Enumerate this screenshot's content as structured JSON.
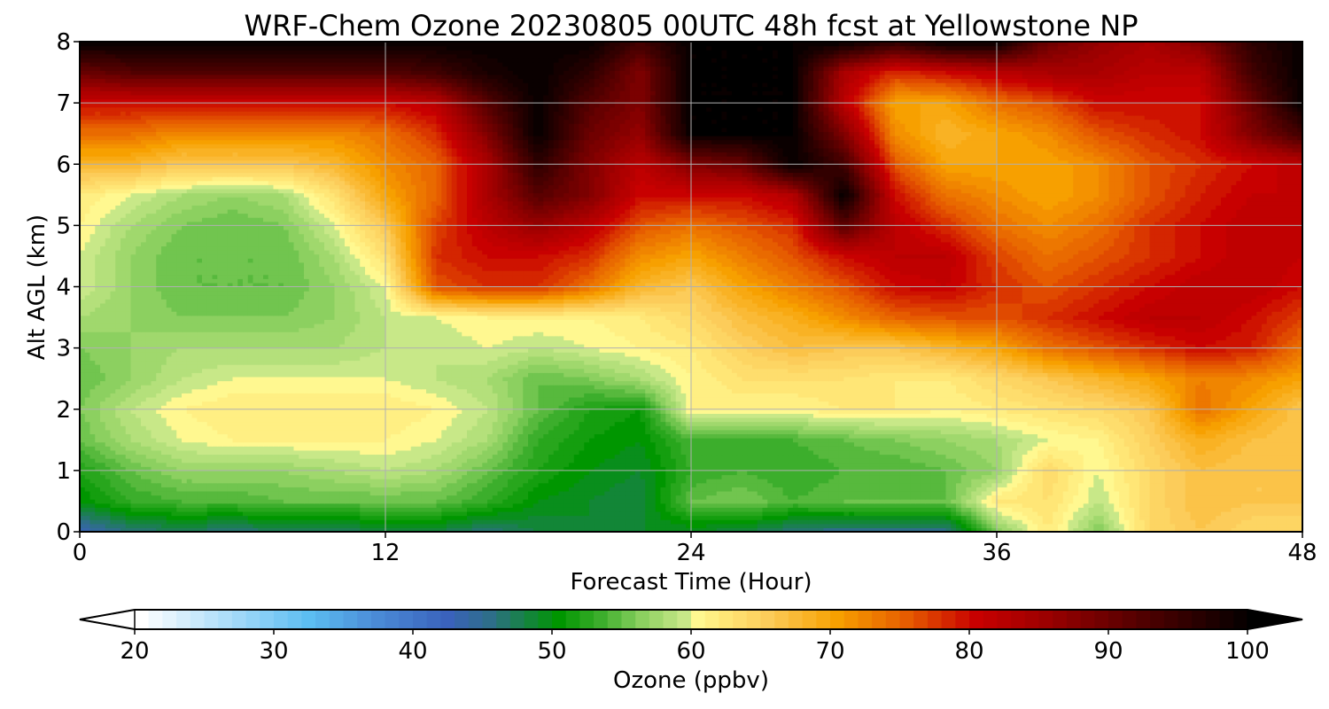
{
  "chart_data": {
    "type": "heatmap",
    "title": "WRF-Chem Ozone  20230805 00UTC 48h fcst at Yellowstone NP",
    "xlabel": "Forecast Time (Hour)",
    "ylabel": "Alt AGL (km)",
    "xlim": [
      0,
      48
    ],
    "ylim": [
      0,
      8
    ],
    "xticks": [
      0,
      12,
      24,
      36,
      48
    ],
    "yticks": [
      0,
      1,
      2,
      3,
      4,
      5,
      6,
      7,
      8
    ],
    "grid": true,
    "colorbar": {
      "label": "Ozone  (ppbv)",
      "min": 20,
      "max": 100,
      "step": 1,
      "ticks": [
        20,
        30,
        40,
        50,
        60,
        70,
        80,
        90,
        100
      ],
      "extend": "both",
      "colors": {
        "20": "#ffffff",
        "27": "#a0d8f8",
        "32": "#5cbef2",
        "37": "#4a8ad6",
        "42": "#3a62bc",
        "45": "#2e6e8a",
        "50": "#009600",
        "53": "#3cae2c",
        "56": "#8cd060",
        "59": "#c8e888",
        "60": "#fff890",
        "62": "#ffe676",
        "65": "#fccc5a",
        "70": "#f7a000",
        "75": "#e65c00",
        "80": "#c80000",
        "85": "#9c0000",
        "92": "#500000",
        "100": "#000000"
      }
    },
    "x": [
      0,
      2,
      4,
      6,
      8,
      10,
      12,
      14,
      16,
      18,
      20,
      22,
      24,
      26,
      28,
      30,
      32,
      34,
      36,
      38,
      40,
      42,
      44,
      46,
      48
    ],
    "y": [
      0,
      0.5,
      1,
      1.5,
      2,
      2.5,
      3,
      3.5,
      4,
      4.5,
      5,
      5.5,
      6,
      6.5,
      7,
      7.5,
      8
    ],
    "z": [
      [
        43,
        46,
        47,
        46,
        47,
        47,
        48,
        48,
        46,
        48,
        49,
        49,
        49,
        48,
        46,
        45,
        45,
        45,
        56,
        62,
        56,
        64,
        66,
        64,
        64
      ],
      [
        50,
        53,
        54,
        54,
        55,
        55,
        55,
        55,
        53,
        50,
        49,
        48,
        55,
        56,
        54,
        55,
        55,
        55,
        62,
        63,
        59,
        64,
        67,
        66,
        66
      ],
      [
        52,
        55,
        57,
        57,
        57,
        58,
        59,
        58,
        55,
        52,
        50,
        49,
        53,
        54,
        53,
        54,
        54,
        55,
        57,
        64,
        60,
        64,
        67,
        66,
        66
      ],
      [
        55,
        58,
        60,
        61,
        61,
        61,
        61,
        60,
        58,
        53,
        51,
        50,
        54,
        53,
        54,
        55,
        56,
        57,
        58,
        60,
        61,
        65,
        69,
        67,
        66
      ],
      [
        56,
        59,
        61,
        62,
        62,
        62,
        62,
        61,
        59,
        55,
        52,
        51,
        61,
        61,
        61,
        62,
        62,
        61,
        62,
        63,
        64,
        66,
        74,
        70,
        66
      ],
      [
        55,
        57,
        59,
        60,
        60,
        60,
        60,
        59,
        58,
        55,
        56,
        58,
        61,
        63,
        63,
        63,
        62,
        62,
        64,
        66,
        68,
        70,
        73,
        72,
        70
      ],
      [
        56,
        57,
        58,
        58,
        58,
        58,
        59,
        59,
        60,
        59,
        60,
        61,
        62,
        65,
        67,
        66,
        66,
        68,
        70,
        74,
        76,
        78,
        80,
        79,
        74
      ],
      [
        58,
        57,
        56,
        56,
        56,
        57,
        59,
        60,
        61,
        61,
        61,
        62,
        64,
        67,
        69,
        72,
        75,
        76,
        76,
        78,
        80,
        82,
        82,
        80,
        77
      ],
      [
        60,
        57,
        55,
        55,
        55,
        57,
        60,
        76,
        78,
        78,
        74,
        68,
        66,
        70,
        73,
        76,
        80,
        81,
        78,
        76,
        78,
        80,
        82,
        82,
        80
      ],
      [
        60,
        57,
        55,
        55,
        55,
        58,
        63,
        78,
        80,
        80,
        78,
        72,
        70,
        73,
        76,
        80,
        82,
        82,
        77,
        74,
        76,
        78,
        80,
        82,
        81
      ],
      [
        61,
        58,
        56,
        55,
        56,
        60,
        66,
        77,
        82,
        86,
        82,
        76,
        74,
        76,
        78,
        92,
        82,
        78,
        74,
        72,
        74,
        78,
        80,
        82,
        81
      ],
      [
        62,
        60,
        58,
        57,
        58,
        63,
        70,
        75,
        84,
        92,
        88,
        80,
        80,
        80,
        83,
        100,
        80,
        74,
        72,
        70,
        72,
        76,
        79,
        81,
        81
      ],
      [
        68,
        68,
        66,
        66,
        66,
        68,
        72,
        75,
        84,
        96,
        88,
        82,
        88,
        90,
        100,
        94,
        76,
        70,
        70,
        70,
        72,
        76,
        78,
        80,
        82
      ],
      [
        74,
        74,
        72,
        72,
        72,
        72,
        74,
        78,
        88,
        100,
        90,
        86,
        100,
        100,
        100,
        88,
        72,
        68,
        70,
        72,
        76,
        78,
        80,
        88,
        94
      ],
      [
        80,
        80,
        80,
        80,
        80,
        80,
        80,
        82,
        92,
        100,
        92,
        88,
        100,
        100,
        100,
        82,
        70,
        70,
        74,
        76,
        80,
        80,
        80,
        90,
        100
      ],
      [
        90,
        92,
        92,
        92,
        92,
        92,
        92,
        94,
        98,
        100,
        96,
        88,
        100,
        100,
        100,
        84,
        78,
        80,
        82,
        84,
        84,
        82,
        82,
        94,
        100
      ],
      [
        100,
        100,
        100,
        100,
        100,
        100,
        100,
        100,
        100,
        100,
        100,
        94,
        100,
        100,
        100,
        100,
        96,
        100,
        100,
        90,
        86,
        84,
        88,
        96,
        100
      ]
    ]
  }
}
